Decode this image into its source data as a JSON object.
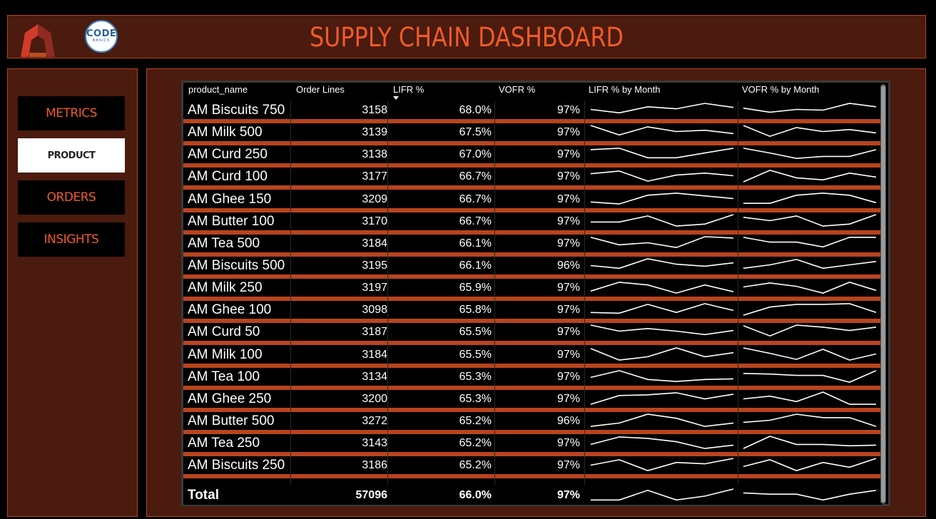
{
  "app": {
    "title": "SUPPLY CHAIN DASHBOARD",
    "logo_text_big": "CODE",
    "logo_text_small": "BASICS"
  },
  "nav": [
    {
      "label": "METRICS",
      "active": false
    },
    {
      "label": "PRODUCT",
      "active": true
    },
    {
      "label": "ORDERS",
      "active": false
    },
    {
      "label": "INSIGHTS",
      "active": false
    }
  ],
  "table": {
    "headers": {
      "product_name": "product_name",
      "order_lines": "Order Lines",
      "lifr": "LIFR %",
      "vofr": "VOFR %",
      "lifr_month": "LIFR % by Month",
      "vofr_month": "VOFR % by Month"
    },
    "sorted_column": "LIFR %",
    "sort_direction": "descending",
    "rows": [
      {
        "name": "AM Biscuits 750",
        "lines": "3158",
        "lifr": "68.0%",
        "vofr": "97%",
        "lifr_trend": [
          0.55,
          0.3,
          0.75,
          0.6,
          1.0,
          0.7
        ],
        "vofr_trend": [
          0.65,
          0.35,
          0.55,
          0.5,
          1.0,
          0.75
        ]
      },
      {
        "name": "AM Milk 500",
        "lines": "3139",
        "lifr": "67.5%",
        "vofr": "97%",
        "lifr_trend": [
          1.0,
          0.3,
          0.9,
          0.55,
          0.65,
          0.4
        ],
        "vofr_trend": [
          1.0,
          0.2,
          0.85,
          0.55,
          0.7,
          0.45
        ]
      },
      {
        "name": "AM Curd 250",
        "lines": "3138",
        "lifr": "67.0%",
        "vofr": "97%",
        "lifr_trend": [
          0.85,
          0.95,
          0.25,
          0.25,
          0.6,
          0.95
        ],
        "vofr_trend": [
          0.95,
          0.6,
          0.2,
          0.35,
          0.35,
          0.85
        ]
      },
      {
        "name": "AM Curd 100",
        "lines": "3177",
        "lifr": "66.7%",
        "vofr": "97%",
        "lifr_trend": [
          0.7,
          0.9,
          0.15,
          0.6,
          0.75,
          0.55
        ],
        "vofr_trend": [
          0.1,
          0.95,
          0.4,
          0.25,
          0.75,
          0.45
        ]
      },
      {
        "name": "AM Ghee 150",
        "lines": "3209",
        "lifr": "66.7%",
        "vofr": "97%",
        "lifr_trend": [
          0.3,
          0.15,
          0.8,
          0.95,
          0.75,
          0.55
        ],
        "vofr_trend": [
          0.2,
          0.2,
          0.8,
          0.95,
          0.8,
          0.25
        ]
      },
      {
        "name": "AM Butter 100",
        "lines": "3170",
        "lifr": "66.7%",
        "vofr": "97%",
        "lifr_trend": [
          0.45,
          0.45,
          0.9,
          0.15,
          0.3,
          1.0
        ],
        "vofr_trend": [
          0.8,
          0.55,
          0.9,
          0.15,
          0.3,
          1.0
        ]
      },
      {
        "name": "AM Tea 500",
        "lines": "3184",
        "lifr": "66.1%",
        "vofr": "97%",
        "lifr_trend": [
          0.95,
          0.4,
          0.55,
          0.2,
          1.0,
          0.9
        ],
        "vofr_trend": [
          0.95,
          0.6,
          0.6,
          0.25,
          0.95,
          0.95
        ]
      },
      {
        "name": "AM Biscuits 500",
        "lines": "3195",
        "lifr": "66.1%",
        "vofr": "96%",
        "lifr_trend": [
          0.5,
          0.3,
          1.0,
          0.6,
          0.45,
          0.7
        ],
        "vofr_trend": [
          0.3,
          0.55,
          0.95,
          0.3,
          0.55,
          0.8
        ]
      },
      {
        "name": "AM Milk 250",
        "lines": "3197",
        "lifr": "65.9%",
        "vofr": "97%",
        "lifr_trend": [
          0.25,
          0.9,
          0.7,
          0.1,
          0.7,
          0.2
        ],
        "vofr_trend": [
          0.55,
          0.85,
          0.6,
          0.1,
          0.9,
          0.3
        ]
      },
      {
        "name": "AM Ghee 100",
        "lines": "3098",
        "lifr": "65.8%",
        "vofr": "97%",
        "lifr_trend": [
          0.3,
          0.25,
          0.9,
          0.3,
          0.95,
          0.45
        ],
        "vofr_trend": [
          0.1,
          0.7,
          0.9,
          0.9,
          0.95,
          0.3
        ]
      },
      {
        "name": "AM Curd 50",
        "lines": "3187",
        "lifr": "65.5%",
        "vofr": "97%",
        "lifr_trend": [
          1.0,
          0.55,
          0.75,
          0.55,
          0.3,
          0.6
        ],
        "vofr_trend": [
          0.95,
          0.2,
          1.0,
          0.85,
          0.6,
          0.85
        ]
      },
      {
        "name": "AM Milk 100",
        "lines": "3184",
        "lifr": "65.5%",
        "vofr": "97%",
        "lifr_trend": [
          0.95,
          0.1,
          0.35,
          1.0,
          0.35,
          0.65
        ],
        "vofr_trend": [
          1.0,
          0.6,
          0.15,
          0.9,
          0.1,
          0.55
        ]
      },
      {
        "name": "AM Tea 100",
        "lines": "3134",
        "lifr": "65.3%",
        "vofr": "97%",
        "lifr_trend": [
          0.45,
          0.95,
          0.3,
          0.15,
          0.3,
          0.35
        ],
        "vofr_trend": [
          0.75,
          0.7,
          0.6,
          0.6,
          0.1,
          0.95
        ]
      },
      {
        "name": "AM Ghee 250",
        "lines": "3200",
        "lifr": "65.3%",
        "vofr": "97%",
        "lifr_trend": [
          0.1,
          0.75,
          0.8,
          0.95,
          0.5,
          0.85
        ],
        "vofr_trend": [
          0.5,
          0.7,
          0.3,
          1.0,
          0.1,
          0.1
        ]
      },
      {
        "name": "AM Butter 500",
        "lines": "3272",
        "lifr": "65.2%",
        "vofr": "96%",
        "lifr_trend": [
          0.1,
          0.35,
          1.0,
          0.7,
          0.1,
          0.35
        ],
        "vofr_trend": [
          0.4,
          0.55,
          1.0,
          0.75,
          0.75,
          0.1
        ]
      },
      {
        "name": "AM Tea 250",
        "lines": "3143",
        "lifr": "65.2%",
        "vofr": "97%",
        "lifr_trend": [
          0.4,
          0.95,
          0.85,
          0.6,
          0.1,
          0.35
        ],
        "vofr_trend": [
          0.1,
          1.0,
          0.4,
          0.4,
          0.3,
          0.35
        ]
      },
      {
        "name": "AM Biscuits 250",
        "lines": "3186",
        "lifr": "65.2%",
        "vofr": "97%",
        "lifr_trend": [
          0.5,
          0.9,
          0.1,
          0.7,
          0.6,
          1.0
        ],
        "vofr_trend": [
          0.4,
          0.9,
          0.1,
          0.7,
          0.35,
          1.0
        ]
      }
    ],
    "total": {
      "label": "Total",
      "lines": "57096",
      "lifr": "66.0%",
      "vofr": "97%",
      "lifr_trend": [
        0.15,
        0.15,
        0.9,
        0.15,
        0.45,
        1.0
      ],
      "vofr_trend": [
        0.7,
        0.6,
        0.6,
        0.15,
        0.6,
        0.9
      ]
    }
  },
  "colors": {
    "accent": "#f05a2a",
    "panel_bg": "#4a1b0e",
    "panel_border": "#b5431f",
    "row_separator": "#b8441e"
  }
}
